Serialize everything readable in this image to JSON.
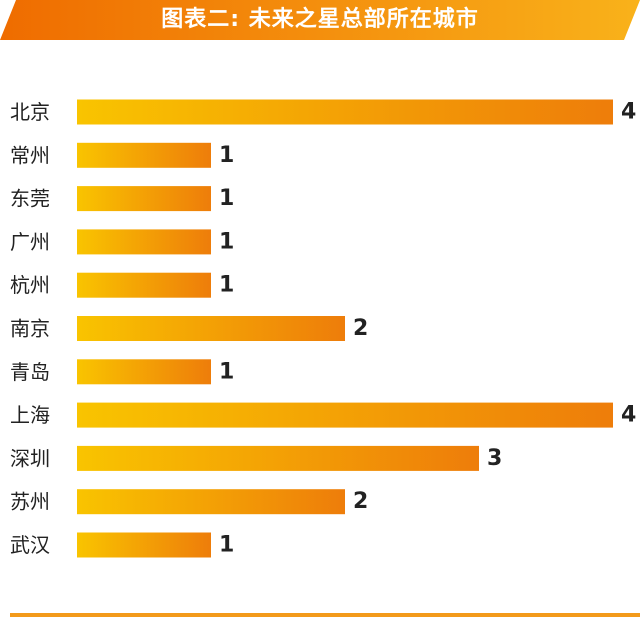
{
  "title": "图表二: 未来之星总部所在城市",
  "colors": {
    "banner_start": "#ef6c00",
    "banner_end": "#f9b21a",
    "bar_start": "#f9c400",
    "bar_end": "#ee7d0a",
    "label_text": "#222222",
    "rule": "#f39a1a"
  },
  "chart_data": {
    "type": "bar",
    "orientation": "horizontal",
    "title": "图表二: 未来之星总部所在城市",
    "xlabel": "",
    "ylabel": "",
    "categories": [
      "北京",
      "常州",
      "东莞",
      "广州",
      "杭州",
      "南京",
      "青岛",
      "上海",
      "深圳",
      "苏州",
      "武汉"
    ],
    "values": [
      4,
      1,
      1,
      1,
      1,
      2,
      1,
      4,
      3,
      2,
      1
    ],
    "xlim": [
      0,
      4
    ],
    "grid": false,
    "legend": "none"
  }
}
